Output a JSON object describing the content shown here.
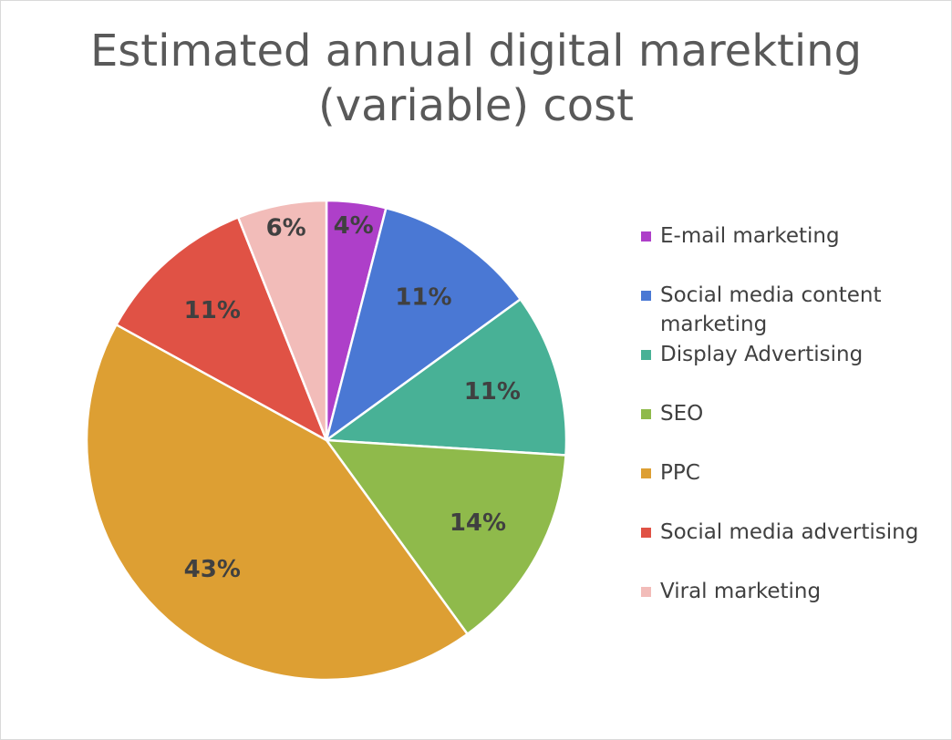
{
  "chart_data": {
    "type": "pie",
    "title": "Estimated annual digital marekting (variable) cost",
    "title_lines": [
      "Estimated annual digital marekting",
      "(variable) cost"
    ],
    "legend_position": "right",
    "slices": [
      {
        "name": "E-mail marketing",
        "value": 4,
        "label": "4%",
        "color": "#ae3fc9"
      },
      {
        "name": "Social media content marketing",
        "value": 11,
        "label": "11%",
        "color": "#4a78d4"
      },
      {
        "name": "Display Advertising",
        "value": 11,
        "label": "11%",
        "color": "#48b196"
      },
      {
        "name": "SEO",
        "value": 14,
        "label": "14%",
        "color": "#8fba4b"
      },
      {
        "name": "PPC",
        "value": 43,
        "label": "43%",
        "color": "#dd9f33"
      },
      {
        "name": "Social media advertising",
        "value": 11,
        "label": "11%",
        "color": "#e05245"
      },
      {
        "name": "Viral marketing",
        "value": 6,
        "label": "6%",
        "color": "#f2bcb9"
      }
    ]
  }
}
